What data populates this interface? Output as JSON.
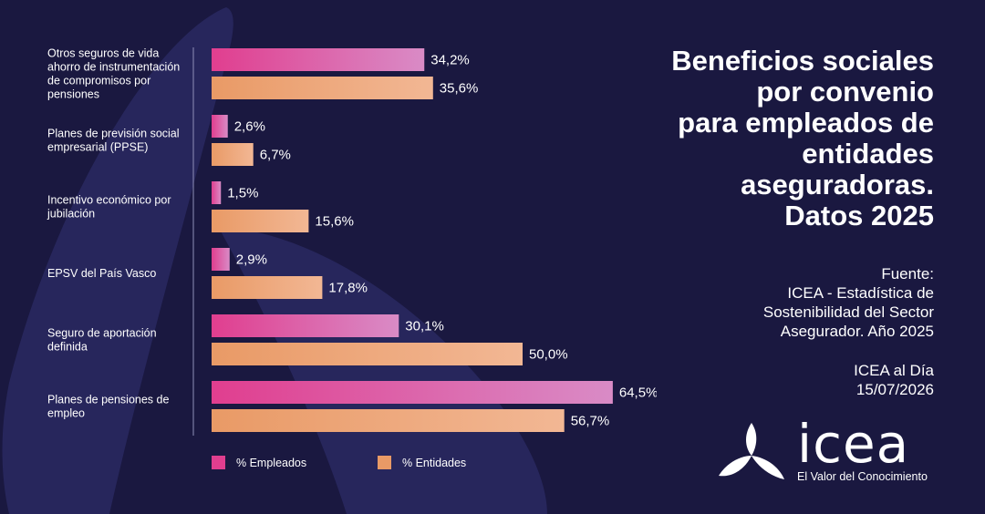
{
  "title_lines": [
    "Beneficios sociales",
    "por convenio",
    "para empleados de",
    "entidades",
    "aseguradoras.",
    "Datos 2025"
  ],
  "source_lines": [
    "Fuente:",
    "ICEA - Estadística de",
    "Sostenibilidad del Sector",
    "Asegurador. Año 2025"
  ],
  "edition_lines": [
    "ICEA al Día",
    "15/07/2026"
  ],
  "logo": {
    "word": "icea",
    "tagline": "El Valor del Conocimiento"
  },
  "colors": {
    "background": "#1a1840",
    "shape": "#2b2a66",
    "empleados_start": "#e03e8f",
    "empleados_end": "#d98bc6",
    "entidades_start": "#e99a66",
    "entidades_end": "#f2b794"
  },
  "chart_data": {
    "type": "bar",
    "orientation": "horizontal",
    "categories": [
      [
        "Otros seguros de vida",
        "ahorro de instrumentación",
        "de compromisos por",
        "pensiones"
      ],
      [
        "Planes de previsión social",
        "empresarial (PPSE)"
      ],
      [
        "Incentivo económico por",
        "jubilación"
      ],
      [
        "EPSV del País Vasco"
      ],
      [
        "Seguro de aportación",
        "definida"
      ],
      [
        "Planes de pensiones de",
        "empleo"
      ]
    ],
    "series": [
      {
        "name": "% Empleados",
        "values": [
          34.2,
          2.6,
          1.5,
          2.9,
          30.1,
          64.5
        ],
        "labels": [
          "34,2%",
          "2,6%",
          "1,5%",
          "2,9%",
          "30,1%",
          "64,5%"
        ]
      },
      {
        "name": "% Entidades",
        "values": [
          35.6,
          6.7,
          15.6,
          17.8,
          50.0,
          56.7
        ],
        "labels": [
          "35,6%",
          "6,7%",
          "15,6%",
          "17,8%",
          "50,0%",
          "56,7%"
        ]
      }
    ],
    "xlim": [
      0,
      100
    ],
    "grid": false,
    "legend_position": "bottom"
  }
}
